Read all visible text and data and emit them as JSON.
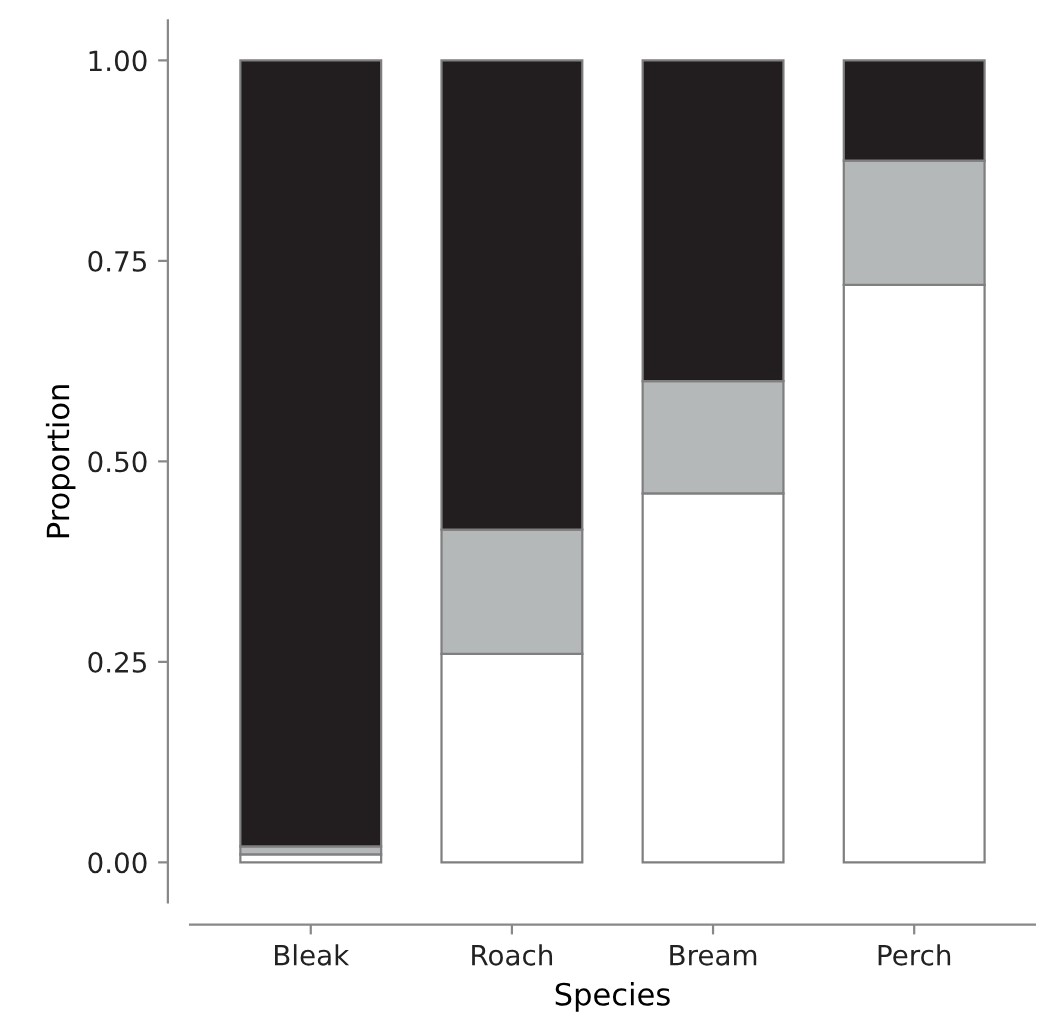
{
  "chart_data": {
    "type": "bar",
    "stacked": true,
    "xlabel": "Species",
    "ylabel": "Proportion",
    "categories": [
      "Bleak",
      "Roach",
      "Bream",
      "Perch"
    ],
    "series": [
      {
        "color": "#ffffff",
        "values": [
          0.01,
          0.26,
          0.46,
          0.72
        ]
      },
      {
        "color": "#b4b8b9",
        "values": [
          0.01,
          0.155,
          0.14,
          0.155
        ]
      },
      {
        "color": "#221e1f",
        "values": [
          0.98,
          0.585,
          0.4,
          0.125
        ]
      }
    ],
    "ylim": [
      -0.05,
      1.05
    ],
    "yticks": [
      {
        "value": 0,
        "label": "0.00"
      },
      {
        "value": 0.25,
        "label": "0.25"
      },
      {
        "value": 0.5,
        "label": "0.50"
      },
      {
        "value": 0.75,
        "label": "0.75"
      },
      {
        "value": 1,
        "label": "1.00"
      }
    ],
    "grid": false,
    "legend": false
  }
}
